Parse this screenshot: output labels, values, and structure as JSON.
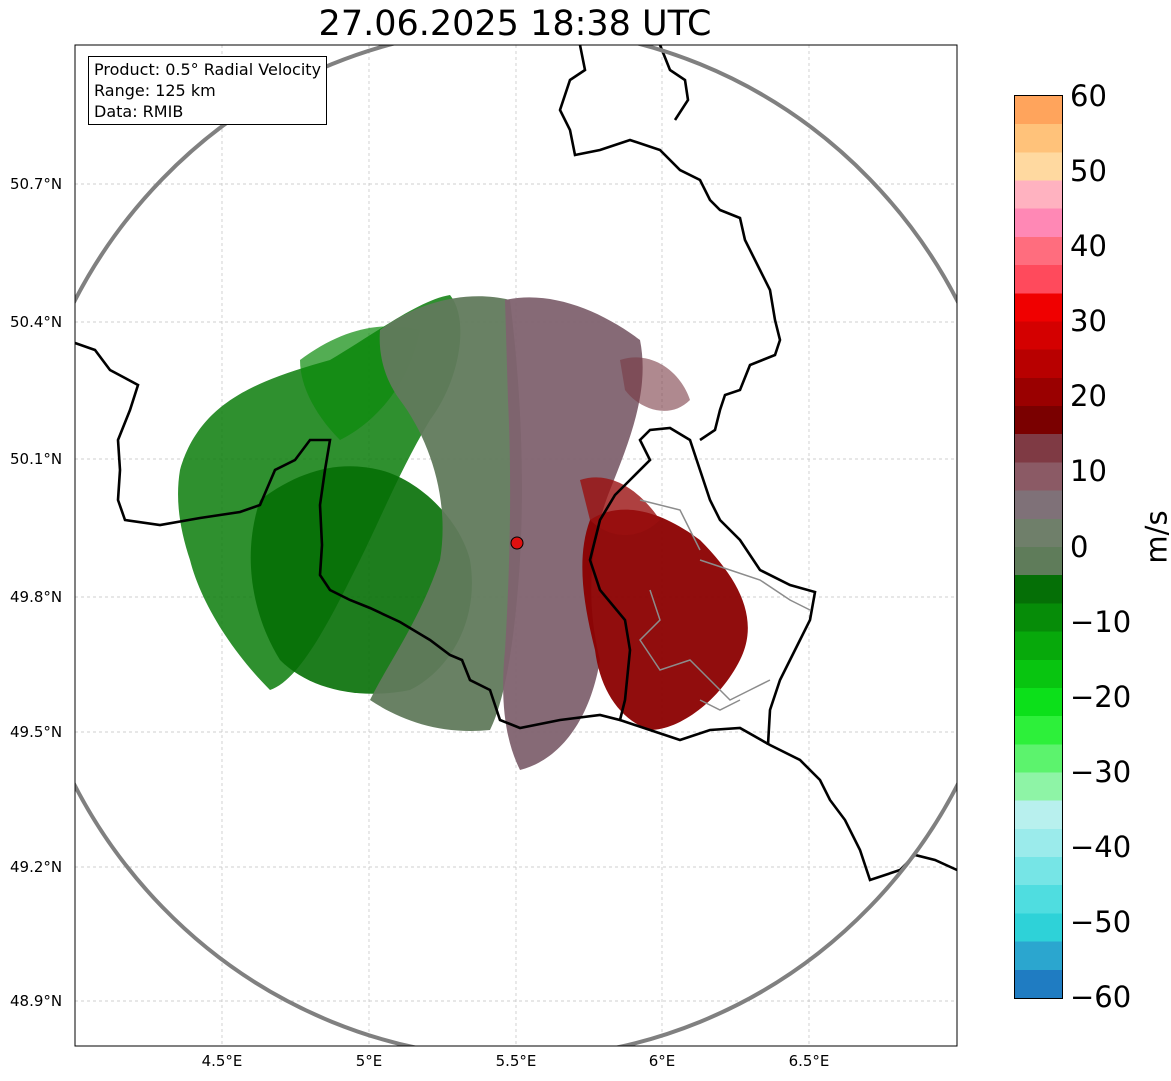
{
  "title": "27.06.2025 18:38 UTC",
  "info": {
    "product": "Product: 0.5° Radial Velocity",
    "range": "Range: 125 km",
    "source": "Data: RMIB"
  },
  "lat_labels": [
    "50.7°N",
    "50.4°N",
    "50.1°N",
    "49.8°N",
    "49.5°N",
    "49.2°N",
    "48.9°N"
  ],
  "lon_labels": [
    "4.5°E",
    "5°E",
    "5.5°E",
    "6°E",
    "6.5°E"
  ],
  "colorbar": {
    "unit": "m/s",
    "ticks": [
      "60",
      "50",
      "40",
      "30",
      "20",
      "10",
      "0",
      "−10",
      "−20",
      "−30",
      "−40",
      "−50",
      "−60"
    ],
    "range": [
      -60,
      60
    ],
    "colors": [
      "#1f7cc2",
      "#2ba6cf",
      "#2ed2d8",
      "#4fdde0",
      "#76e5e6",
      "#9bebeb",
      "#b8f0ee",
      "#8ef4a6",
      "#5cf36d",
      "#2df03a",
      "#0ce01a",
      "#08c510",
      "#07a90b",
      "#068c08",
      "#056f06",
      "#5f7c5a",
      "#6f7f6a",
      "#7f7178",
      "#8b5a65",
      "#7f3a44",
      "#7a0000",
      "#9a0000",
      "#b80000",
      "#d40000",
      "#f00000",
      "#ff4a5c",
      "#ff6d7e",
      "#ff88b5",
      "#ffb2c0",
      "#ffd9a0",
      "#ffc27a",
      "#ffa45c"
    ],
    "accent_colors": {
      "toward": "#056f06",
      "away": "#8b0000",
      "near_zero": "#6f7f6a"
    }
  },
  "map": {
    "radar_site": "red-dot",
    "range_ring_color": "#808080",
    "border_color": "#000000",
    "gridline_style": "dashed-gray"
  }
}
